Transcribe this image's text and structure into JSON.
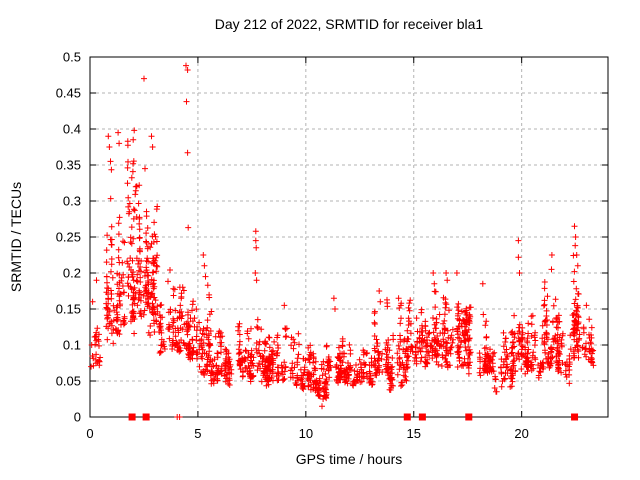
{
  "window": {
    "title": "Day 212 of 2022, SRMTID for receiver bla1"
  },
  "chart_data": {
    "type": "scatter",
    "title": "Day 212 of 2022, SRMTID for receiver bla1",
    "xlabel": "GPS time / hours",
    "ylabel": "SRMTID / TECUs",
    "xlim": [
      0,
      24
    ],
    "ylim": [
      0,
      0.5
    ],
    "xticks": {
      "values": [
        0,
        5,
        10,
        15,
        20
      ],
      "labels": [
        "0",
        "5",
        "10",
        "15",
        "20"
      ]
    },
    "yticks": {
      "values": [
        0,
        0.05,
        0.1,
        0.15,
        0.2,
        0.25,
        0.3,
        0.35,
        0.4,
        0.45,
        0.5
      ],
      "labels": [
        "0",
        "0.05",
        "0.1",
        "0.15",
        "0.2",
        "0.25",
        "0.3",
        "0.35",
        "0.4",
        "0.45",
        "0.5"
      ]
    },
    "grid": {
      "show": true,
      "color": "#b3b3b3",
      "style": "dashed"
    },
    "legend": "none",
    "background": "#ffffff",
    "border_color": "#000000",
    "marker_color": "#ff0000",
    "series": [
      {
        "name": "SRMTID scatter (plus markers)",
        "marker": "plus",
        "color": "#ff0000",
        "size": 7,
        "seed": 20220212,
        "notable_points": [
          [
            0.05,
            0.07
          ],
          [
            0.08,
            0.1
          ],
          [
            0.12,
            0.16
          ],
          [
            0.3,
            0.19
          ],
          [
            0.85,
            0.39
          ],
          [
            0.9,
            0.375
          ],
          [
            0.95,
            0.355
          ],
          [
            1.3,
            0.395
          ],
          [
            1.35,
            0.38
          ],
          [
            2.0,
            0.385
          ],
          [
            2.05,
            0.398
          ],
          [
            2.5,
            0.47
          ],
          [
            2.55,
            0.345
          ],
          [
            2.85,
            0.39
          ],
          [
            2.9,
            0.375
          ],
          [
            4.45,
            0.488
          ],
          [
            4.52,
            0.482
          ],
          [
            4.47,
            0.438
          ],
          [
            4.52,
            0.367
          ],
          [
            4.55,
            0.263
          ],
          [
            5.25,
            0.225
          ],
          [
            5.3,
            0.21
          ],
          [
            5.35,
            0.195
          ],
          [
            7.68,
            0.258
          ],
          [
            7.68,
            0.245
          ],
          [
            7.7,
            0.235
          ],
          [
            7.66,
            0.2
          ],
          [
            7.72,
            0.19
          ],
          [
            9.0,
            0.155
          ],
          [
            10.75,
            0.015
          ],
          [
            10.8,
            0.025
          ],
          [
            10.85,
            0.035
          ],
          [
            11.3,
            0.165
          ],
          [
            11.35,
            0.15
          ],
          [
            13.4,
            0.175
          ],
          [
            13.45,
            0.16
          ],
          [
            14.3,
            0.165
          ],
          [
            14.4,
            0.155
          ],
          [
            15.9,
            0.2
          ],
          [
            15.95,
            0.185
          ],
          [
            16.5,
            0.2
          ],
          [
            16.55,
            0.19
          ],
          [
            17.0,
            0.2
          ],
          [
            18.2,
            0.185
          ],
          [
            19.85,
            0.245
          ],
          [
            19.85,
            0.222
          ],
          [
            19.9,
            0.2
          ],
          [
            21.4,
            0.225
          ],
          [
            21.38,
            0.205
          ],
          [
            22.45,
            0.265
          ],
          [
            22.5,
            0.25
          ],
          [
            22.48,
            0.238
          ],
          [
            22.55,
            0.225
          ],
          [
            22.6,
            0.21
          ],
          [
            23.0,
            0.155
          ]
        ],
        "segment_fields": [
          "hour_start",
          "hour_end",
          "count",
          "y_low",
          "y_high"
        ],
        "density_segments": [
          [
            0.0,
            0.5,
            22,
            0.06,
            0.2
          ],
          [
            0.5,
            1.1,
            48,
            0.09,
            0.38
          ],
          [
            1.1,
            1.7,
            55,
            0.1,
            0.34
          ],
          [
            1.7,
            2.2,
            70,
            0.1,
            0.39
          ],
          [
            2.2,
            2.7,
            70,
            0.12,
            0.37
          ],
          [
            2.7,
            3.2,
            60,
            0.1,
            0.3
          ],
          [
            3.2,
            3.8,
            34,
            0.08,
            0.26
          ],
          [
            3.8,
            4.4,
            55,
            0.08,
            0.235
          ],
          [
            4.4,
            5.0,
            55,
            0.07,
            0.2
          ],
          [
            5.0,
            5.6,
            58,
            0.05,
            0.21
          ],
          [
            5.6,
            7.0,
            112,
            0.04,
            0.15
          ],
          [
            7.0,
            7.6,
            48,
            0.045,
            0.14
          ],
          [
            7.6,
            7.9,
            16,
            0.05,
            0.22
          ],
          [
            7.9,
            9.5,
            125,
            0.04,
            0.135
          ],
          [
            9.5,
            10.5,
            80,
            0.03,
            0.12
          ],
          [
            10.5,
            11.0,
            45,
            0.02,
            0.11
          ],
          [
            11.0,
            11.6,
            50,
            0.04,
            0.16
          ],
          [
            11.6,
            13.2,
            112,
            0.04,
            0.12
          ],
          [
            13.2,
            13.9,
            55,
            0.05,
            0.175
          ],
          [
            13.9,
            14.7,
            60,
            0.03,
            0.165
          ],
          [
            14.7,
            15.5,
            62,
            0.06,
            0.175
          ],
          [
            15.5,
            16.3,
            70,
            0.06,
            0.195
          ],
          [
            16.3,
            17.2,
            80,
            0.06,
            0.205
          ],
          [
            17.2,
            18.0,
            70,
            0.05,
            0.19
          ],
          [
            18.0,
            18.7,
            60,
            0.05,
            0.18
          ],
          [
            18.7,
            19.6,
            58,
            0.03,
            0.15
          ],
          [
            19.6,
            20.2,
            45,
            0.05,
            0.21
          ],
          [
            20.2,
            21.0,
            60,
            0.05,
            0.15
          ],
          [
            21.0,
            21.6,
            55,
            0.06,
            0.21
          ],
          [
            21.6,
            22.3,
            60,
            0.04,
            0.17
          ],
          [
            22.3,
            22.8,
            62,
            0.07,
            0.25
          ],
          [
            22.8,
            23.3,
            34,
            0.06,
            0.17
          ]
        ]
      },
      {
        "name": "flagged epochs (filled squares on baseline)",
        "marker": "filled-square",
        "color": "#ff0000",
        "size": 7,
        "y": 0,
        "x": [
          1.95,
          2.6,
          14.7,
          15.4,
          17.55,
          22.45
        ]
      },
      {
        "name": "near-zero plus marks",
        "marker": "plus",
        "color": "#ff0000",
        "size": 7,
        "y": 0,
        "x": [
          4.04,
          4.15
        ]
      }
    ]
  }
}
